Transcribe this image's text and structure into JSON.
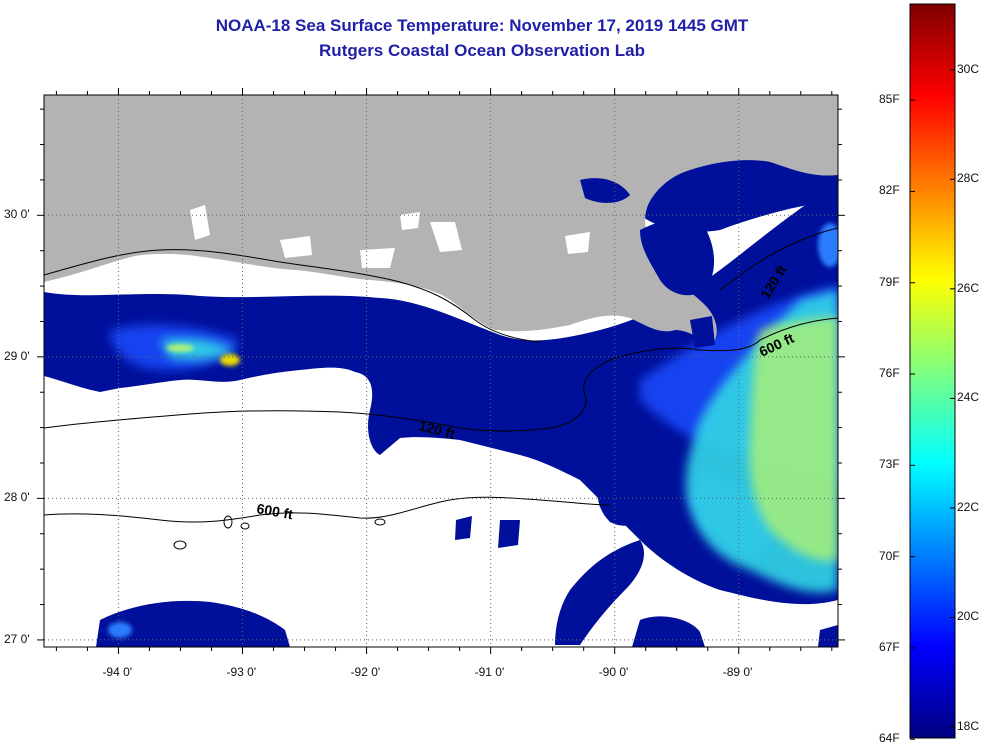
{
  "title": "NOAA-18 Sea Surface Temperature:  November 17, 2019 1445 GMT",
  "subtitle": "Rutgers Coastal Ocean Observation Lab",
  "map": {
    "lon_range": [
      -94.6,
      -88.2
    ],
    "lat_range": [
      26.95,
      30.85
    ],
    "lon_ticks": [
      {
        "value": -94,
        "label": "-94 0'"
      },
      {
        "value": -93,
        "label": "-93 0'"
      },
      {
        "value": -92,
        "label": "-92 0'"
      },
      {
        "value": -91,
        "label": "-91 0'"
      },
      {
        "value": -90,
        "label": "-90 0'"
      },
      {
        "value": -89,
        "label": "-89 0'"
      }
    ],
    "lat_ticks": [
      {
        "value": 30,
        "label": "30 0'"
      },
      {
        "value": 29,
        "label": "29 0'"
      },
      {
        "value": 28,
        "label": "28 0'"
      },
      {
        "value": 27,
        "label": "27 0'"
      }
    ],
    "land_color": "#b3b3b3",
    "cloud_color": "#ffffff",
    "contours": [
      {
        "label": "120 ft"
      },
      {
        "label": "600 ft"
      },
      {
        "label": "120 ft"
      },
      {
        "label": "600 ft"
      }
    ]
  },
  "colorbar": {
    "fahrenheit": [
      {
        "value": 85,
        "label": "85F"
      },
      {
        "value": 82,
        "label": "82F"
      },
      {
        "value": 79,
        "label": "79F"
      },
      {
        "value": 76,
        "label": "76F"
      },
      {
        "value": 73,
        "label": "73F"
      },
      {
        "value": 70,
        "label": "70F"
      },
      {
        "value": 67,
        "label": "67F"
      },
      {
        "value": 64,
        "label": "64F"
      }
    ],
    "celsius": [
      {
        "value": 30,
        "label": "30C"
      },
      {
        "value": 28,
        "label": "28C"
      },
      {
        "value": 26,
        "label": "26C"
      },
      {
        "value": 24,
        "label": "24C"
      },
      {
        "value": 22,
        "label": "22C"
      },
      {
        "value": 20,
        "label": "20C"
      },
      {
        "value": 18,
        "label": "18C"
      }
    ],
    "range_c": [
      17.8,
      31.2
    ],
    "colormap": [
      "#00007f",
      "#0000ff",
      "#007fff",
      "#00ffff",
      "#7fff7f",
      "#ffff00",
      "#ff7f00",
      "#ff0000",
      "#7f0000"
    ]
  }
}
